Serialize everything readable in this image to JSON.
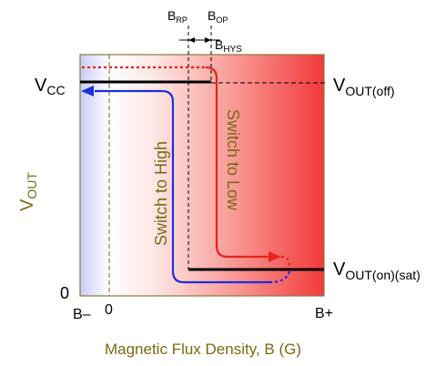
{
  "labels": {
    "b_rp": {
      "main": "B",
      "sub": "RP"
    },
    "b_op": {
      "main": "B",
      "sub": "OP"
    },
    "b_hys": {
      "main": "B",
      "sub": "HYS"
    },
    "vcc": {
      "main": "V",
      "sub": "CC"
    },
    "vout_off": {
      "main": "V",
      "sub": "OUT(off)"
    },
    "vout_on": {
      "main": "V",
      "sub": "OUT(on)(sat)"
    },
    "vout_axis": {
      "main": "V",
      "sub": "OUT"
    },
    "zero_y": "0",
    "b_minus": "B–",
    "zero_x": "0",
    "b_plus": "B+",
    "switch_low": "Switch to Low",
    "switch_high": "Switch to High",
    "x_axis_title": "Magnetic Flux Density, B (G)"
  },
  "colors": {
    "olive_text": "#7a6a12",
    "red_path": "#e8231c",
    "blue_path": "#1a2fe0",
    "frame": "#8a7a3a",
    "gradient_blue": "#c9cdf5",
    "gradient_red": "#f23a3a",
    "output_line": "#000000"
  }
}
